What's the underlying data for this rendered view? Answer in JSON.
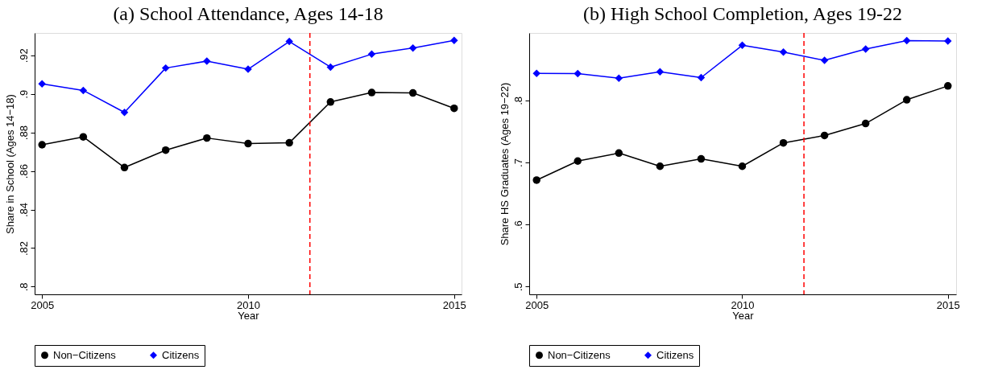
{
  "chart_data": [
    {
      "type": "line",
      "title": "(a) School Attendance, Ages 14-18",
      "xlabel": "Year",
      "ylabel": "Share in School (Ages 14−18)",
      "x": [
        2005,
        2006,
        2007,
        2008,
        2009,
        2010,
        2011,
        2012,
        2013,
        2014,
        2015
      ],
      "series": [
        {
          "name": "Non−Citizens",
          "color": "#000000",
          "marker": "circle",
          "values": [
            0.8736,
            0.8777,
            0.8618,
            0.8708,
            0.8771,
            0.8742,
            0.8746,
            0.8958,
            0.9007,
            0.9005,
            0.8925
          ]
        },
        {
          "name": "Citizens",
          "color": "#0000ff",
          "marker": "diamond",
          "values": [
            0.9052,
            0.9018,
            0.8904,
            0.9134,
            0.917,
            0.9128,
            0.9272,
            0.9139,
            0.9206,
            0.9238,
            0.9277
          ]
        }
      ],
      "xlim": [
        2004.82,
        2015.18
      ],
      "ylim": [
        0.796,
        0.9316
      ],
      "xticks": [
        2005,
        2010,
        2015
      ],
      "yticks": [
        {
          "value": 0.8,
          "label": ".8"
        },
        {
          "value": 0.82,
          "label": ".82"
        },
        {
          "value": 0.84,
          "label": ".84"
        },
        {
          "value": 0.86,
          "label": ".86"
        },
        {
          "value": 0.88,
          "label": ".88"
        },
        {
          "value": 0.9,
          "label": ".9"
        },
        {
          "value": 0.92,
          "label": ".92"
        }
      ],
      "ref_lines": [
        {
          "axis": "x",
          "value": 2011.5,
          "color": "#ff0000",
          "line_style": "dashed"
        }
      ],
      "legend": "bottom",
      "grid": false
    },
    {
      "type": "line",
      "title": "(b) High School Completion, Ages 19-22",
      "xlabel": "Year",
      "ylabel": "Share HS Graduates (Ages 19−22)",
      "x": [
        2005,
        2006,
        2007,
        2008,
        2009,
        2010,
        2011,
        2012,
        2013,
        2014,
        2015
      ],
      "series": [
        {
          "name": "Non−Citizens",
          "color": "#000000",
          "marker": "circle",
          "values": [
            0.6716,
            0.7023,
            0.7152,
            0.6939,
            0.7058,
            0.6939,
            0.7316,
            0.7435,
            0.7628,
            0.801,
            0.8233
          ]
        },
        {
          "name": "Citizens",
          "color": "#0000ff",
          "marker": "diamond",
          "values": [
            0.8436,
            0.8431,
            0.8357,
            0.8461,
            0.8367,
            0.8887,
            0.8778,
            0.8645,
            0.8828,
            0.8962,
            0.8957
          ]
        }
      ],
      "xlim": [
        2004.82,
        2015.2
      ],
      "ylim": [
        0.4876,
        0.9086
      ],
      "xticks": [
        2005,
        2010,
        2015
      ],
      "yticks": [
        {
          "value": 0.5,
          "label": ".5"
        },
        {
          "value": 0.6,
          "label": ".6"
        },
        {
          "value": 0.7,
          "label": ".7"
        },
        {
          "value": 0.8,
          "label": ".8"
        }
      ],
      "ref_lines": [
        {
          "axis": "x",
          "value": 2011.5,
          "color": "#ff0000",
          "line_style": "dashed"
        }
      ],
      "legend": "bottom",
      "grid": false
    }
  ]
}
